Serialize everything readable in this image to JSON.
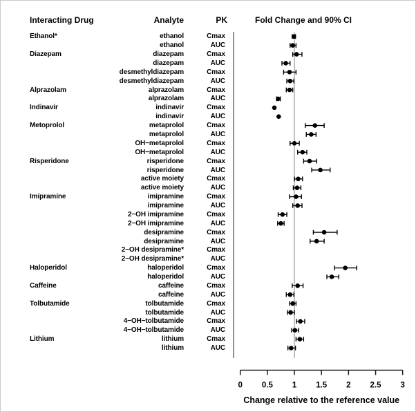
{
  "header": {
    "interacting_drug": "Interacting Drug",
    "analyte": "Analyte",
    "pk": "PK",
    "plot": "Fold Change and 90% CI"
  },
  "colors": {
    "marker": "#000000",
    "reference_line": "#b3b3b3",
    "axis": "#1a1a1a",
    "plot_border": "#3a3a3a",
    "text": "#000000"
  },
  "chart_data": {
    "type": "forest",
    "title": "Fold Change and 90% CI",
    "ci_level": "90%",
    "xlabel": "Change relative to the reference value",
    "xlim": [
      0,
      3
    ],
    "xticks": [
      0,
      0.5,
      1,
      1.5,
      2,
      2.5,
      3
    ],
    "xtick_labels": [
      "0",
      "0.5",
      "1",
      "1.5",
      "2",
      "2.5",
      "3"
    ],
    "reference_value": 1,
    "grid": false,
    "rows": [
      {
        "drug": "Ethanol*",
        "analyte": "ethanol",
        "pk": "Cmax",
        "est": 0.99,
        "lo": 0.96,
        "hi": 1.02
      },
      {
        "drug": "",
        "analyte": "ethanol",
        "pk": "AUC",
        "est": 0.97,
        "lo": 0.92,
        "hi": 1.03
      },
      {
        "drug": "Diazepam",
        "analyte": "diazepam",
        "pk": "Cmax",
        "est": 1.04,
        "lo": 0.97,
        "hi": 1.14
      },
      {
        "drug": "",
        "analyte": "diazepam",
        "pk": "AUC",
        "est": 0.84,
        "lo": 0.77,
        "hi": 0.92
      },
      {
        "drug": "",
        "analyte": "desmethyldiazepam",
        "pk": "Cmax",
        "est": 0.91,
        "lo": 0.8,
        "hi": 1.03
      },
      {
        "drug": "",
        "analyte": "desmethyldiazepam",
        "pk": "AUC",
        "est": 0.92,
        "lo": 0.86,
        "hi": 0.99
      },
      {
        "drug": "Alprazolam",
        "analyte": "alprazolam",
        "pk": "Cmax",
        "est": 0.91,
        "lo": 0.85,
        "hi": 0.97
      },
      {
        "drug": "",
        "analyte": "alprazolam",
        "pk": "AUC",
        "est": 0.7,
        "lo": 0.67,
        "hi": 0.74
      },
      {
        "drug": "Indinavir",
        "analyte": "indinavir",
        "pk": "Cmax",
        "est": 0.63,
        "lo": null,
        "hi": null
      },
      {
        "drug": "",
        "analyte": "indinavir",
        "pk": "AUC",
        "est": 0.71,
        "lo": null,
        "hi": null
      },
      {
        "drug": "Metoprolol",
        "analyte": "metaprolol",
        "pk": "Cmax",
        "est": 1.38,
        "lo": 1.2,
        "hi": 1.55
      },
      {
        "drug": "",
        "analyte": "metaprolol",
        "pk": "AUC",
        "est": 1.31,
        "lo": 1.22,
        "hi": 1.4
      },
      {
        "drug": "",
        "analyte": "OH−metaprolol",
        "pk": "Cmax",
        "est": 1.0,
        "lo": 0.92,
        "hi": 1.09
      },
      {
        "drug": "",
        "analyte": "OH−metaprolol",
        "pk": "AUC",
        "est": 1.15,
        "lo": 1.06,
        "hi": 1.23
      },
      {
        "drug": "Risperidone",
        "analyte": "risperidone",
        "pk": "Cmax",
        "est": 1.28,
        "lo": 1.17,
        "hi": 1.41
      },
      {
        "drug": "",
        "analyte": "risperidone",
        "pk": "AUC",
        "est": 1.48,
        "lo": 1.32,
        "hi": 1.66
      },
      {
        "drug": "",
        "analyte": "active moiety",
        "pk": "Cmax",
        "est": 1.07,
        "lo": 1.0,
        "hi": 1.15
      },
      {
        "drug": "",
        "analyte": "active moiety",
        "pk": "AUC",
        "est": 1.05,
        "lo": 0.98,
        "hi": 1.12
      },
      {
        "drug": "Imipramine",
        "analyte": "imipramine",
        "pk": "Cmax",
        "est": 1.03,
        "lo": 0.91,
        "hi": 1.13
      },
      {
        "drug": "",
        "analyte": "imipramine",
        "pk": "AUC",
        "est": 1.06,
        "lo": 0.97,
        "hi": 1.14
      },
      {
        "drug": "",
        "analyte": "2−OH imipramine",
        "pk": "Cmax",
        "est": 0.78,
        "lo": 0.7,
        "hi": 0.86
      },
      {
        "drug": "",
        "analyte": "2−OH imipramine",
        "pk": "AUC",
        "est": 0.75,
        "lo": 0.69,
        "hi": 0.81
      },
      {
        "drug": "",
        "analyte": "desipramine",
        "pk": "Cmax",
        "est": 1.55,
        "lo": 1.35,
        "hi": 1.79
      },
      {
        "drug": "",
        "analyte": "desipramine",
        "pk": "AUC",
        "est": 1.41,
        "lo": 1.29,
        "hi": 1.55
      },
      {
        "drug": "",
        "analyte": "2−OH desipramine*",
        "pk": "Cmax",
        "est": null,
        "lo": null,
        "hi": null
      },
      {
        "drug": "",
        "analyte": "2−OH desipramine*",
        "pk": "AUC",
        "est": null,
        "lo": null,
        "hi": null
      },
      {
        "drug": "Haloperidol",
        "analyte": "haloperidol",
        "pk": "Cmax",
        "est": 1.94,
        "lo": 1.74,
        "hi": 2.15
      },
      {
        "drug": "",
        "analyte": "haloperidol",
        "pk": "AUC",
        "est": 1.69,
        "lo": 1.6,
        "hi": 1.82
      },
      {
        "drug": "Caffeine",
        "analyte": "caffeine",
        "pk": "Cmax",
        "est": 1.06,
        "lo": 0.96,
        "hi": 1.16
      },
      {
        "drug": "",
        "analyte": "caffeine",
        "pk": "AUC",
        "est": 0.92,
        "lo": 0.85,
        "hi": 0.99
      },
      {
        "drug": "Tolbutamide",
        "analyte": "tolbutamide",
        "pk": "Cmax",
        "est": 0.97,
        "lo": 0.91,
        "hi": 1.03
      },
      {
        "drug": "",
        "analyte": "tolbutamide",
        "pk": "AUC",
        "est": 0.93,
        "lo": 0.87,
        "hi": 1.0
      },
      {
        "drug": "",
        "analyte": "4−OH−tolbutamide",
        "pk": "Cmax",
        "est": 1.11,
        "lo": 1.04,
        "hi": 1.19
      },
      {
        "drug": "",
        "analyte": "4−OH−tolbutamide",
        "pk": "AUC",
        "est": 1.01,
        "lo": 0.95,
        "hi": 1.08
      },
      {
        "drug": "Lithium",
        "analyte": "lithium",
        "pk": "Cmax",
        "est": 1.1,
        "lo": 1.03,
        "hi": 1.17
      },
      {
        "drug": "",
        "analyte": "lithium",
        "pk": "AUC",
        "est": 0.94,
        "lo": 0.88,
        "hi": 1.02
      }
    ]
  }
}
